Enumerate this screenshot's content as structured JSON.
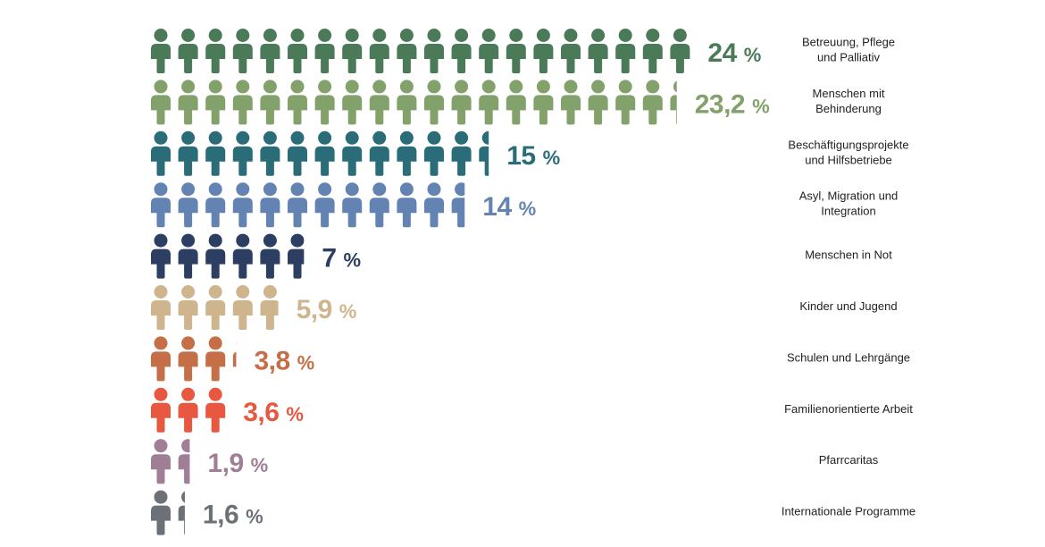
{
  "chart_data": {
    "type": "bar",
    "orientation": "horizontal",
    "unit_symbol": "%",
    "categories": [
      {
        "label": [
          "Betreuung, Pflege",
          "und Palliativ"
        ],
        "value": 24,
        "value_text": "24",
        "color": "#4a7a58"
      },
      {
        "label": [
          "Menschen mit",
          "Behinderung"
        ],
        "value": 23.2,
        "value_text": "23,2",
        "color": "#82a16b"
      },
      {
        "label": [
          "Beschäftigungsprojekte",
          "und Hilfsbetriebe"
        ],
        "value": 15,
        "value_text": "15",
        "color": "#2a6d79"
      },
      {
        "label": [
          "Asyl, Migration und",
          "Integration"
        ],
        "value": 14,
        "value_text": "14",
        "color": "#6384b2"
      },
      {
        "label": [
          "Menschen in Not"
        ],
        "value": 7,
        "value_text": "7",
        "color": "#2d3e63"
      },
      {
        "label": [
          "Kinder und Jugend"
        ],
        "value": 5.9,
        "value_text": "5,9",
        "color": "#cfb58e"
      },
      {
        "label": [
          "Schulen und Lehrgänge"
        ],
        "value": 3.8,
        "value_text": "3,8",
        "color": "#c46f47"
      },
      {
        "label": [
          "Familienorientierte Arbeit"
        ],
        "value": 3.6,
        "value_text": "3,6",
        "color": "#e8573f"
      },
      {
        "label": [
          "Pfarrcaritas"
        ],
        "value": 1.9,
        "value_text": "1,9",
        "color": "#a07e95"
      },
      {
        "label": [
          "Internationale Programme"
        ],
        "value": 1.6,
        "value_text": "1,6",
        "color": "#6b7177"
      }
    ]
  }
}
